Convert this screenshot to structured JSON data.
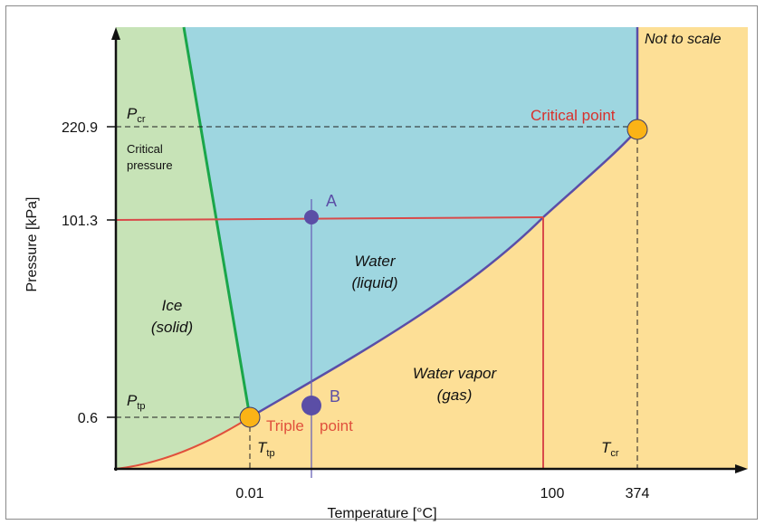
{
  "note": "Not to scale",
  "y_axis": {
    "label": "Pressure [kPa]",
    "ticks": [
      "220.9",
      "101.3",
      "0.6"
    ]
  },
  "x_axis": {
    "label": "Temperature [°C]",
    "ticks": [
      "0.01",
      "100",
      "374"
    ]
  },
  "markers": {
    "p_cr": {
      "main": "P",
      "sub": "cr"
    },
    "p_tp": {
      "main": "P",
      "sub": "tp"
    },
    "t_tp": {
      "main": "T",
      "sub": "tp"
    },
    "t_cr": {
      "main": "T",
      "sub": "cr"
    }
  },
  "critical_pressure": {
    "line1": "Critical",
    "line2": "pressure"
  },
  "regions": {
    "ice": {
      "line1": "Ice",
      "line2": "(solid)"
    },
    "water": {
      "line1": "Water",
      "line2": "(liquid)"
    },
    "vapor": {
      "line1": "Water vapor",
      "line2": "(gas)"
    }
  },
  "points": {
    "critical": "Critical point",
    "triple_1": "Triple",
    "triple_2": "point",
    "a": "A",
    "b": "B"
  },
  "colors": {
    "ice": "#c7e3b7",
    "water": "#9ed6e0",
    "vapor": "#fddf96",
    "melting_curve": "#1aa64a",
    "vaporization_curve": "#5a4ea8",
    "sublimation_curve": "#e0503c",
    "isobar": "#d94a4a",
    "point_fill": "#fbb316",
    "point_ab": "#5b4ea6",
    "critical_text": "#d8302c"
  }
}
